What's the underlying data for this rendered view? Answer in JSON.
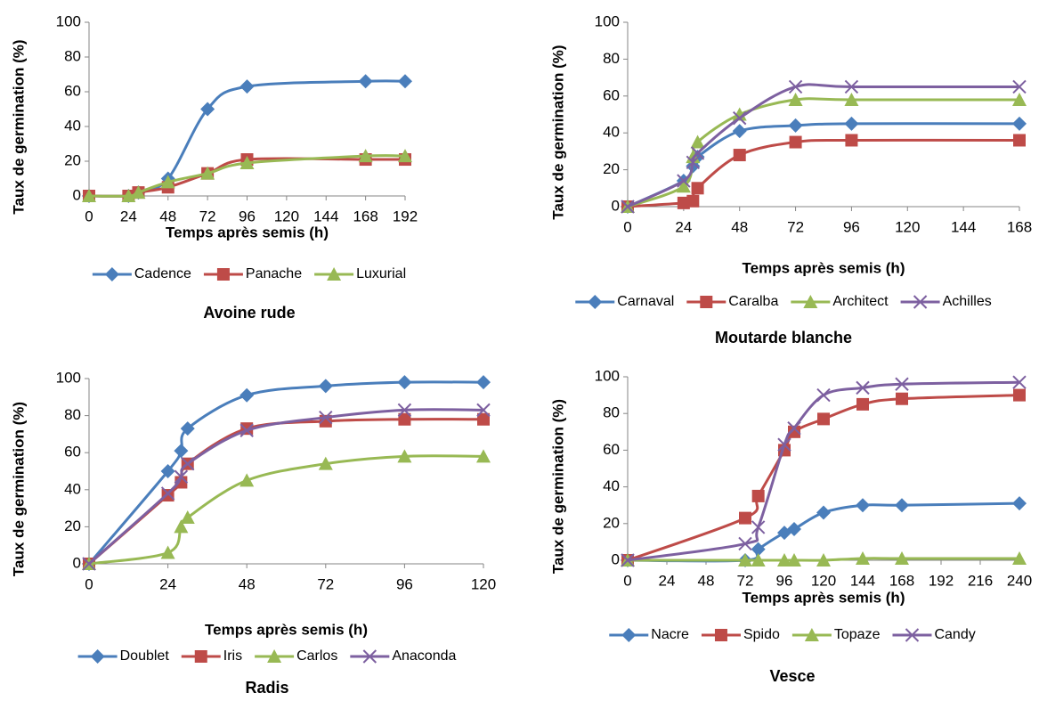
{
  "chart_data": [
    {
      "type": "line",
      "title": "Avoine rude",
      "xlabel": "Temps après semis (h)",
      "ylabel": "Taux de germination (%)",
      "x": [
        0,
        24,
        30,
        48,
        72,
        96,
        168,
        192
      ],
      "xlim": [
        0,
        192
      ],
      "xticks": [
        0,
        24,
        48,
        72,
        96,
        120,
        144,
        168,
        192
      ],
      "ylim": [
        0,
        100
      ],
      "yticks": [
        0,
        20,
        40,
        60,
        80,
        100
      ],
      "smooth": true,
      "series": [
        {
          "name": "Cadence",
          "color": "#4a7ebb",
          "marker": "diamond",
          "values": [
            0,
            0,
            2,
            10,
            50,
            63,
            66,
            66
          ]
        },
        {
          "name": "Panache",
          "color": "#be4b48",
          "marker": "square",
          "values": [
            0,
            0,
            2,
            5,
            13,
            21,
            21,
            21
          ]
        },
        {
          "name": "Luxurial",
          "color": "#98b954",
          "marker": "triangle",
          "values": [
            0,
            0,
            2,
            8,
            13,
            19,
            23,
            23
          ]
        }
      ]
    },
    {
      "type": "line",
      "title": "Moutarde blanche",
      "xlabel": "Temps après semis (h)",
      "ylabel": "Taux de germination (%)",
      "x": [
        0,
        24,
        28,
        30,
        48,
        72,
        96,
        168
      ],
      "xlim": [
        0,
        168
      ],
      "xticks": [
        0,
        24,
        48,
        72,
        96,
        120,
        144,
        168
      ],
      "ylim": [
        0,
        100
      ],
      "yticks": [
        0,
        20,
        40,
        60,
        80,
        100
      ],
      "smooth": true,
      "series": [
        {
          "name": "Carnaval",
          "color": "#4a7ebb",
          "marker": "diamond",
          "values": [
            0,
            14,
            22,
            27,
            41,
            44,
            45,
            45
          ]
        },
        {
          "name": "Caralba",
          "color": "#be4b48",
          "marker": "square",
          "values": [
            0,
            2,
            3,
            10,
            28,
            35,
            36,
            36
          ]
        },
        {
          "name": "Architect",
          "color": "#98b954",
          "marker": "triangle",
          "values": [
            0,
            11,
            27,
            35,
            50,
            58,
            58,
            58
          ]
        },
        {
          "name": "Achilles",
          "color": "#7d60a0",
          "marker": "x",
          "values": [
            0,
            14,
            24,
            29,
            48,
            65,
            65,
            65
          ]
        }
      ]
    },
    {
      "type": "line",
      "title": "Radis",
      "xlabel": "Temps après semis (h)",
      "ylabel": "Taux de germination (%)",
      "x": [
        0,
        24,
        28,
        30,
        48,
        72,
        96,
        120
      ],
      "xlim": [
        0,
        120
      ],
      "xticks": [
        0,
        24,
        48,
        72,
        96,
        120
      ],
      "ylim": [
        0,
        100
      ],
      "yticks": [
        0,
        20,
        40,
        60,
        80,
        100
      ],
      "smooth": true,
      "series": [
        {
          "name": "Doublet",
          "color": "#4a7ebb",
          "marker": "diamond",
          "values": [
            0,
            50,
            61,
            73,
            91,
            96,
            98,
            98
          ]
        },
        {
          "name": "Iris",
          "color": "#be4b48",
          "marker": "square",
          "values": [
            0,
            37,
            44,
            54,
            73,
            77,
            78,
            78
          ]
        },
        {
          "name": "Carlos",
          "color": "#98b954",
          "marker": "triangle",
          "values": [
            0,
            6,
            20,
            25,
            45,
            54,
            58,
            58
          ]
        },
        {
          "name": "Anaconda",
          "color": "#7d60a0",
          "marker": "x",
          "values": [
            0,
            38,
            47,
            54,
            72,
            79,
            83,
            83
          ]
        }
      ]
    },
    {
      "type": "line",
      "title": "Vesce",
      "xlabel": "Temps après semis (h)",
      "ylabel": "Taux de germination (%)",
      "x": [
        0,
        72,
        80,
        96,
        102,
        120,
        144,
        168,
        240
      ],
      "xlim": [
        0,
        240
      ],
      "xticks": [
        0,
        24,
        48,
        72,
        96,
        120,
        144,
        168,
        192,
        216,
        240
      ],
      "ylim": [
        0,
        100
      ],
      "yticks": [
        0,
        20,
        40,
        60,
        80,
        100
      ],
      "smooth": true,
      "series": [
        {
          "name": "Nacre",
          "color": "#4a7ebb",
          "marker": "diamond",
          "values": [
            0,
            0,
            6,
            15,
            17,
            26,
            30,
            30,
            31
          ]
        },
        {
          "name": "Spido",
          "color": "#be4b48",
          "marker": "square",
          "values": [
            0,
            23,
            35,
            60,
            70,
            77,
            85,
            88,
            90
          ]
        },
        {
          "name": "Topaze",
          "color": "#98b954",
          "marker": "triangle",
          "values": [
            0,
            0,
            0,
            0,
            0,
            0,
            1,
            1,
            1
          ]
        },
        {
          "name": "Candy",
          "color": "#7d60a0",
          "marker": "x",
          "values": [
            0,
            9,
            18,
            63,
            72,
            90,
            94,
            96,
            97
          ]
        }
      ]
    }
  ]
}
